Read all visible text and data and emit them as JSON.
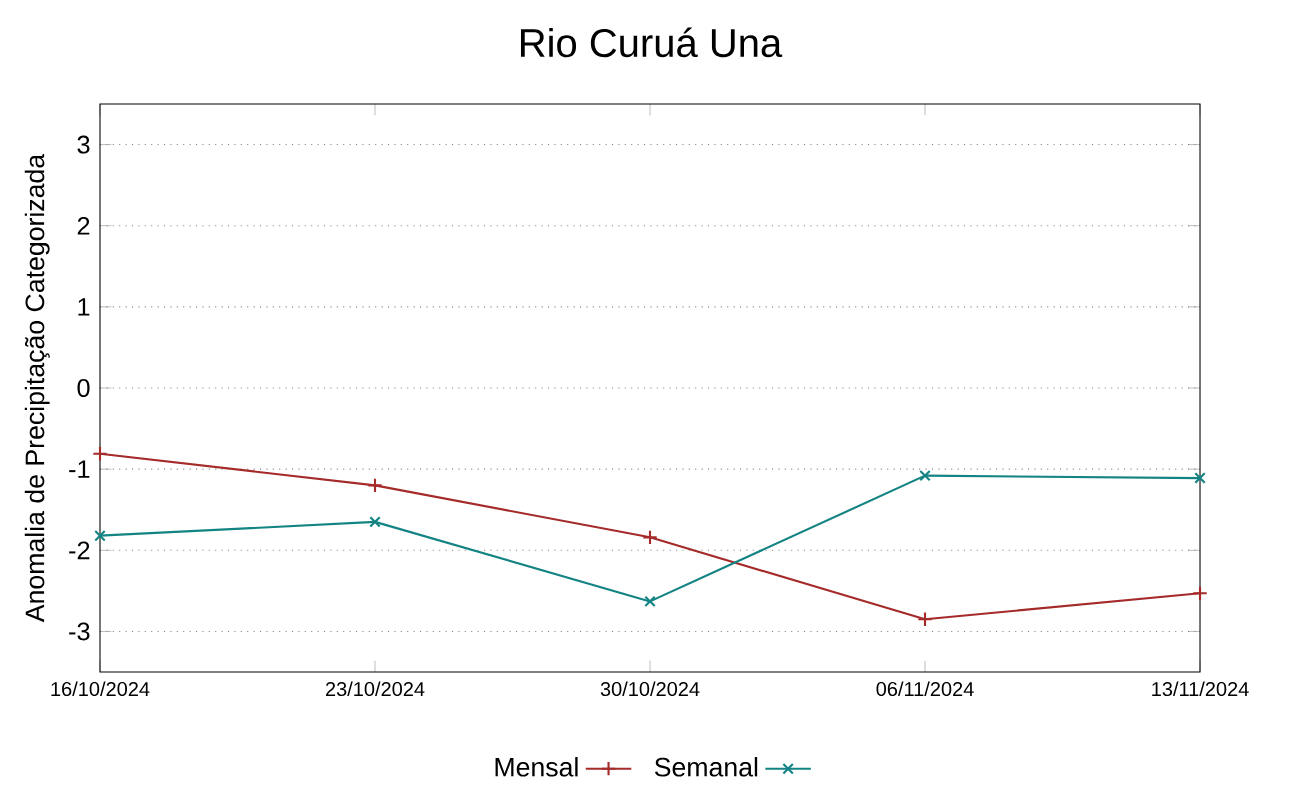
{
  "chart_data": {
    "type": "line",
    "title": "Rio Curuá Una",
    "ylabel": "Anomalia de Precipitação Categorizada",
    "categories": [
      "16/10/2024",
      "23/10/2024",
      "30/10/2024",
      "06/11/2024",
      "13/11/2024"
    ],
    "series": [
      {
        "name": "Mensal",
        "color": "#a52a2a",
        "marker": "plus",
        "values": [
          -0.81,
          -1.2,
          -1.84,
          -2.85,
          -2.53
        ]
      },
      {
        "name": "Semanal",
        "color": "#138383",
        "marker": "cross",
        "values": [
          -1.82,
          -1.65,
          -2.63,
          -1.08,
          -1.11
        ]
      }
    ],
    "ylim": [
      -3.5,
      3.5
    ],
    "yticks": [
      -3,
      -2,
      -1,
      0,
      1,
      2,
      3
    ],
    "grid": "y",
    "legend": "bottom"
  }
}
